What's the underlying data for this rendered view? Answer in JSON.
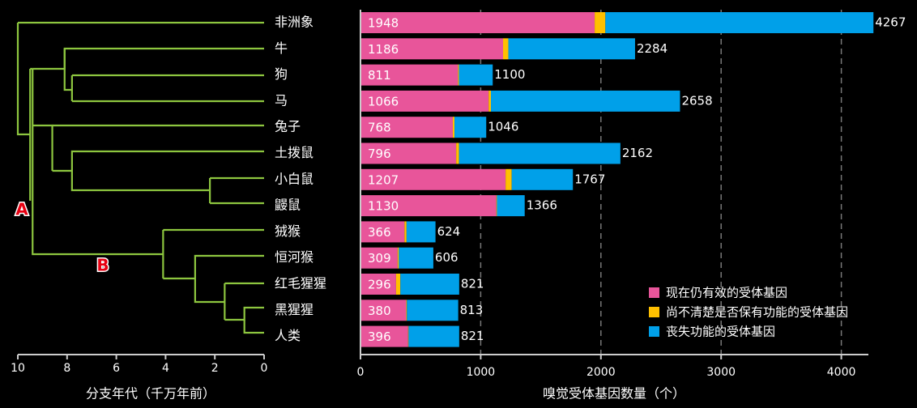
{
  "tree": {
    "node_a": "A",
    "node_b": "B",
    "axis_title": "分支年代（千万年前）",
    "ticks": [
      10,
      8,
      6,
      4,
      2,
      0
    ]
  },
  "chart_data": {
    "type": "bar",
    "stacked": true,
    "orientation": "horizontal",
    "categories": [
      "非洲象",
      "牛",
      "狗",
      "马",
      "兔子",
      "土拨鼠",
      "小白鼠",
      "鼹鼠",
      "狨猴",
      "恒河猴",
      "红毛猩猩",
      "黑猩猩",
      "人类"
    ],
    "series": [
      {
        "name": "现在仍有效的受体基因",
        "color": "#e8559a",
        "values": [
          1948,
          1186,
          811,
          1066,
          768,
          796,
          1207,
          1130,
          366,
          309,
          296,
          380,
          396
        ]
      },
      {
        "name": "尚不清楚是否保有功能的受体基因",
        "color": "#ffc000",
        "values": [
          89,
          44,
          8,
          19,
          14,
          24,
          51,
          5,
          17,
          10,
          36,
          6,
          4
        ]
      },
      {
        "name": "丧失功能的受体基因",
        "color": "#00a0e9",
        "values": [
          2230,
          1054,
          281,
          1573,
          264,
          1342,
          509,
          231,
          241,
          287,
          489,
          427,
          421
        ]
      }
    ],
    "totals": [
      4267,
      2284,
      1100,
      2658,
      1046,
      2162,
      1767,
      1366,
      624,
      606,
      821,
      813,
      821
    ],
    "xlabel": "嗅觉受体基因数量（个）",
    "xlim": [
      0,
      4267
    ],
    "xticks": [
      0,
      1000,
      2000,
      3000,
      4000
    ],
    "grid": "vertical-dashed",
    "legend_position": "bottom-right"
  },
  "colors": {
    "background": "#000000",
    "tree_line": "#8dc63f",
    "text": "#ffffff",
    "axis": "#cccccc",
    "grid": "#777777",
    "node_label": "#e60012"
  }
}
